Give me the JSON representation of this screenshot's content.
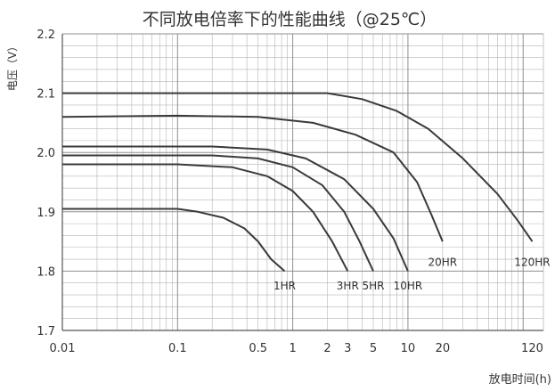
{
  "chart_data": {
    "type": "line",
    "title": "不同放电倍率下的性能曲线（@25℃）",
    "xlabel": "放电时间(h)",
    "ylabel": "电压（V）",
    "x_scale": "log",
    "xlim": [
      0.01,
      150
    ],
    "ylim": [
      1.7,
      2.2
    ],
    "x_ticks": [
      0.01,
      0.1,
      0.5,
      1,
      2,
      3,
      5,
      10,
      20,
      120
    ],
    "x_tick_labels": [
      "0.01",
      "0.1",
      "0.5",
      "1",
      "2",
      "3",
      "5",
      "10",
      "20",
      "120"
    ],
    "y_ticks": [
      1.7,
      1.8,
      1.9,
      2.0,
      2.1,
      2.2
    ],
    "y_tick_labels": [
      "1.7",
      "1.8",
      "1.9",
      "2.0",
      "2.1",
      "2.2"
    ],
    "grid": true,
    "legend": "none",
    "colors": {
      "line": "#3a3a3a",
      "grid": "#b5b5b5",
      "axis": "#555555",
      "text": "#333333"
    },
    "series": [
      {
        "name": "1HR",
        "points": [
          [
            0.01,
            1.905
          ],
          [
            0.1,
            1.905
          ],
          [
            0.15,
            1.9
          ],
          [
            0.25,
            1.89
          ],
          [
            0.38,
            1.872
          ],
          [
            0.5,
            1.85
          ],
          [
            0.65,
            1.82
          ],
          [
            0.85,
            1.8
          ]
        ]
      },
      {
        "name": "3HR",
        "points": [
          [
            0.01,
            1.98
          ],
          [
            0.1,
            1.98
          ],
          [
            0.3,
            1.975
          ],
          [
            0.6,
            1.96
          ],
          [
            1.0,
            1.935
          ],
          [
            1.5,
            1.9
          ],
          [
            2.2,
            1.85
          ],
          [
            3.0,
            1.8
          ]
        ]
      },
      {
        "name": "5HR",
        "points": [
          [
            0.01,
            1.995
          ],
          [
            0.2,
            1.995
          ],
          [
            0.5,
            1.99
          ],
          [
            1.0,
            1.975
          ],
          [
            1.8,
            1.945
          ],
          [
            2.8,
            1.9
          ],
          [
            3.8,
            1.85
          ],
          [
            5.0,
            1.8
          ]
        ]
      },
      {
        "name": "10HR",
        "points": [
          [
            0.01,
            2.01
          ],
          [
            0.2,
            2.01
          ],
          [
            0.6,
            2.005
          ],
          [
            1.3,
            1.99
          ],
          [
            2.8,
            1.955
          ],
          [
            5.0,
            1.905
          ],
          [
            7.5,
            1.855
          ],
          [
            10.0,
            1.8
          ]
        ]
      },
      {
        "name": "20HR",
        "points": [
          [
            0.01,
            2.06
          ],
          [
            0.1,
            2.062
          ],
          [
            0.5,
            2.06
          ],
          [
            1.5,
            2.05
          ],
          [
            3.5,
            2.03
          ],
          [
            7.5,
            2.0
          ],
          [
            12.0,
            1.95
          ],
          [
            16.0,
            1.895
          ],
          [
            20.0,
            1.85
          ]
        ]
      },
      {
        "name": "120HR",
        "points": [
          [
            0.01,
            2.1
          ],
          [
            2.0,
            2.1
          ],
          [
            4.0,
            2.09
          ],
          [
            8.0,
            2.07
          ],
          [
            15.0,
            2.04
          ],
          [
            30.0,
            1.99
          ],
          [
            60.0,
            1.93
          ],
          [
            90.0,
            1.885
          ],
          [
            120.0,
            1.85
          ]
        ]
      }
    ],
    "series_labels": [
      {
        "text": "1HR",
        "x": 0.85,
        "y": 1.79
      },
      {
        "text": "3HR",
        "x": 3.0,
        "y": 1.79
      },
      {
        "text": "5HR",
        "x": 5.0,
        "y": 1.79
      },
      {
        "text": "10HR",
        "x": 10.0,
        "y": 1.79
      },
      {
        "text": "20HR",
        "x": 20.0,
        "y": 1.83
      },
      {
        "text": "120HR",
        "x": 120.0,
        "y": 1.83
      }
    ]
  }
}
